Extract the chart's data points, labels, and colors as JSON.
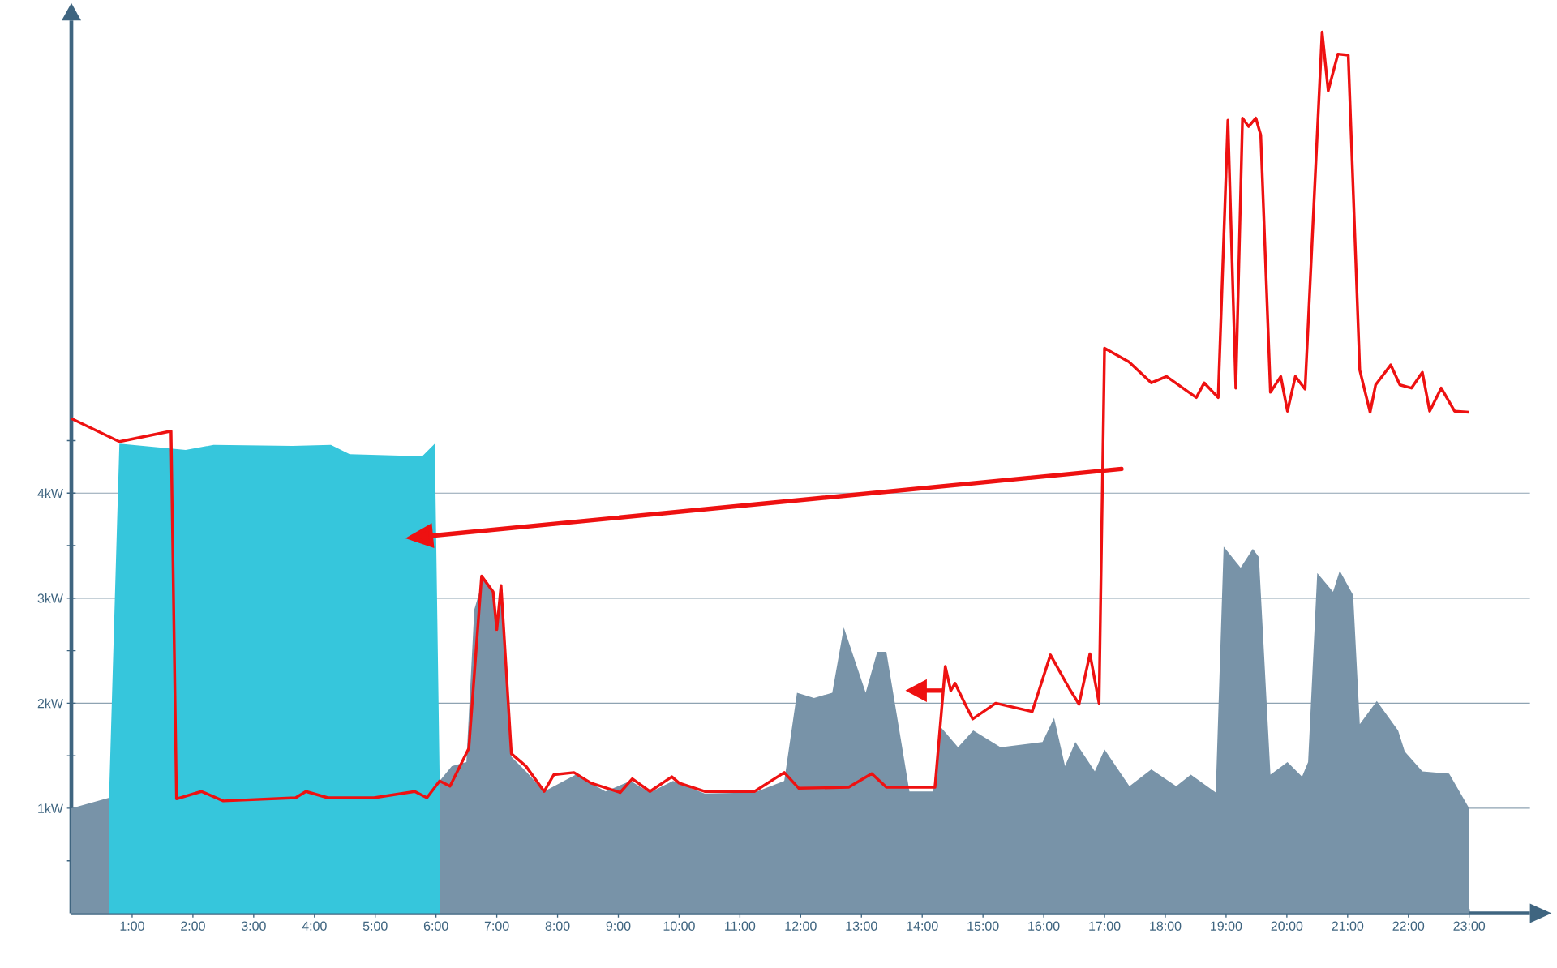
{
  "chart_data": {
    "type": "area",
    "xlim": [
      0,
      24
    ],
    "ylim": [
      0,
      8.5
    ],
    "xticks": [
      {
        "value": 1,
        "label": "1:00"
      },
      {
        "value": 2,
        "label": "2:00"
      },
      {
        "value": 3,
        "label": "3:00"
      },
      {
        "value": 4,
        "label": "4:00"
      },
      {
        "value": 5,
        "label": "5:00"
      },
      {
        "value": 6,
        "label": "6:00"
      },
      {
        "value": 7,
        "label": "7:00"
      },
      {
        "value": 8,
        "label": "8:00"
      },
      {
        "value": 9,
        "label": "9:00"
      },
      {
        "value": 10,
        "label": "10:00"
      },
      {
        "value": 11,
        "label": "11:00"
      },
      {
        "value": 12,
        "label": "12:00"
      },
      {
        "value": 13,
        "label": "13:00"
      },
      {
        "value": 14,
        "label": "14:00"
      },
      {
        "value": 15,
        "label": "15:00"
      },
      {
        "value": 16,
        "label": "16:00"
      },
      {
        "value": 17,
        "label": "17:00"
      },
      {
        "value": 18,
        "label": "18:00"
      },
      {
        "value": 19,
        "label": "19:00"
      },
      {
        "value": 20,
        "label": "20:00"
      },
      {
        "value": 21,
        "label": "21:00"
      },
      {
        "value": 22,
        "label": "22:00"
      },
      {
        "value": 23,
        "label": "23:00"
      }
    ],
    "yticks": [
      {
        "value": 0.5,
        "label": null
      },
      {
        "value": 1,
        "label": "1kW"
      },
      {
        "value": 1.5,
        "label": null
      },
      {
        "value": 2,
        "label": "2kW"
      },
      {
        "value": 2.5,
        "label": null
      },
      {
        "value": 3,
        "label": "3kW"
      },
      {
        "value": 3.5,
        "label": null
      },
      {
        "value": 4,
        "label": "4kW"
      },
      {
        "value": 4.5,
        "label": null
      }
    ],
    "grid": "y",
    "series": [
      {
        "color": "#7893a8",
        "x": [
          0,
          0.62,
          3,
          6.06,
          6.26,
          6.5,
          6.63,
          6.78,
          6.94,
          7.0,
          7.07,
          7.24,
          7.48,
          7.78,
          8.3,
          8.79,
          9.2,
          9.52,
          9.9,
          10.42,
          11.24,
          11.73,
          11.94,
          12.22,
          12.52,
          12.71,
          13.07,
          13.26,
          13.41,
          13.79,
          14.18,
          14.31,
          14.59,
          14.84,
          15.29,
          15.98,
          16.17,
          16.35,
          16.52,
          16.84,
          17.0,
          17.41,
          17.77,
          18.18,
          18.42,
          18.83,
          18.96,
          19.24,
          19.44,
          19.54,
          19.73,
          20.01,
          20.25,
          20.35,
          20.5,
          20.76,
          20.87,
          21.09,
          21.2,
          21.48,
          21.83,
          21.94,
          22.23,
          22.67,
          23.0
        ],
        "values": [
          1.0,
          1.1,
          null,
          1.26,
          1.4,
          1.44,
          2.89,
          3.19,
          3.06,
          2.67,
          3.08,
          1.49,
          1.35,
          1.16,
          1.32,
          1.16,
          1.26,
          1.15,
          1.26,
          1.14,
          1.15,
          1.26,
          2.1,
          2.05,
          2.1,
          2.72,
          2.1,
          2.49,
          2.49,
          1.16,
          1.16,
          1.77,
          1.58,
          1.74,
          1.58,
          1.63,
          1.86,
          1.4,
          1.63,
          1.35,
          1.56,
          1.21,
          1.37,
          1.21,
          1.32,
          1.15,
          3.49,
          3.29,
          3.47,
          3.39,
          1.32,
          1.44,
          1.3,
          1.44,
          3.24,
          3.06,
          3.26,
          3.03,
          1.8,
          2.02,
          1.74,
          1.54,
          1.35,
          1.33,
          1.0
        ]
      },
      {
        "color": "#36c6dc",
        "x": [
          0.62,
          0.79,
          1.88,
          2.34,
          3.64,
          4.27,
          4.58,
          5.77,
          5.98,
          6.06
        ],
        "values": [
          1.1,
          4.47,
          4.41,
          4.46,
          4.45,
          4.46,
          4.37,
          4.35,
          4.47,
          1.26
        ]
      },
      {
        "type": "line",
        "color": "#ee1111",
        "x": [
          0,
          0.79,
          1.64,
          1.73,
          2.14,
          2.5,
          3.69,
          3.86,
          4.22,
          4.98,
          5.65,
          5.85,
          6.06,
          6.23,
          6.54,
          6.75,
          6.94,
          7.0,
          7.07,
          7.24,
          7.48,
          7.78,
          7.94,
          8.27,
          8.55,
          9.03,
          9.23,
          9.52,
          9.88,
          10.0,
          10.42,
          11.24,
          11.73,
          11.97,
          12.79,
          13.17,
          13.41,
          14.21,
          14.38,
          14.47,
          14.54,
          14.7,
          14.83,
          15.21,
          15.81,
          16.11,
          16.42,
          16.58,
          16.76,
          16.91,
          17.0,
          17.4,
          17.77,
          18.02,
          18.51,
          18.64,
          18.87,
          19.03,
          19.16,
          19.27,
          19.37,
          19.49,
          19.57,
          19.73,
          19.9,
          20.01,
          20.14,
          20.3,
          20.58,
          20.68,
          20.84,
          21.01,
          21.2,
          21.37,
          21.46,
          21.71,
          21.86,
          22.05,
          22.23,
          22.35,
          22.54,
          22.76,
          23.0
        ],
        "values": [
          4.71,
          4.49,
          4.59,
          1.09,
          1.16,
          1.07,
          1.1,
          1.16,
          1.1,
          1.1,
          1.16,
          1.1,
          1.26,
          1.21,
          1.57,
          3.21,
          3.06,
          2.7,
          3.12,
          1.52,
          1.4,
          1.16,
          1.32,
          1.34,
          1.24,
          1.15,
          1.28,
          1.16,
          1.3,
          1.24,
          1.16,
          1.16,
          1.34,
          1.19,
          1.2,
          1.33,
          1.2,
          1.2,
          2.35,
          2.12,
          2.19,
          2.0,
          1.85,
          2.0,
          1.92,
          2.46,
          2.14,
          1.99,
          2.47,
          2.0,
          5.38,
          5.25,
          5.05,
          5.11,
          4.91,
          5.05,
          4.91,
          7.55,
          5.0,
          7.57,
          7.49,
          7.57,
          7.41,
          4.96,
          5.11,
          4.78,
          5.11,
          4.99,
          8.39,
          7.83,
          8.18,
          8.17,
          5.17,
          4.77,
          5.03,
          5.22,
          5.03,
          5.0,
          5.15,
          4.78,
          5.0,
          4.78,
          4.77
        ]
      }
    ]
  }
}
